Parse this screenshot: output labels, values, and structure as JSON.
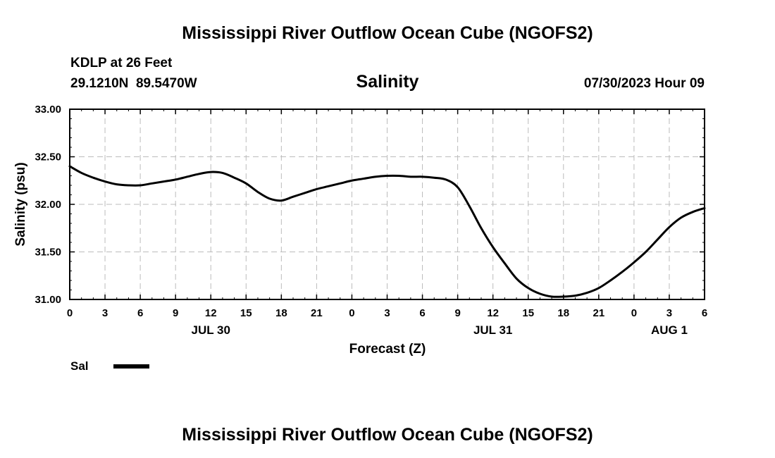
{
  "colors": {
    "background": "#ffffff",
    "line": "#000000",
    "grid": "#bbbbbb"
  },
  "chart_data": {
    "type": "line",
    "title": "Mississippi River Outflow Ocean Cube (NGOFS2)",
    "subtitle": "Salinity",
    "station": "KDLP at 26 Feet",
    "location": "29.1210N  89.5470W",
    "timestamp": "07/30/2023 Hour 09",
    "xlabel": "Forecast (Z)",
    "ylabel": "Salinity (psu)",
    "xlim": [
      0,
      54
    ],
    "ylim": [
      31.0,
      33.0
    ],
    "grid": true,
    "x_ticks": [
      {
        "value": 0,
        "label": "0"
      },
      {
        "value": 3,
        "label": "3"
      },
      {
        "value": 6,
        "label": "6"
      },
      {
        "value": 9,
        "label": "9"
      },
      {
        "value": 12,
        "label": "12"
      },
      {
        "value": 15,
        "label": "15"
      },
      {
        "value": 18,
        "label": "18"
      },
      {
        "value": 21,
        "label": "21"
      },
      {
        "value": 24,
        "label": "0"
      },
      {
        "value": 27,
        "label": "3"
      },
      {
        "value": 30,
        "label": "6"
      },
      {
        "value": 33,
        "label": "9"
      },
      {
        "value": 36,
        "label": "12"
      },
      {
        "value": 39,
        "label": "15"
      },
      {
        "value": 42,
        "label": "18"
      },
      {
        "value": 45,
        "label": "21"
      },
      {
        "value": 48,
        "label": "0"
      },
      {
        "value": 51,
        "label": "3"
      },
      {
        "value": 54,
        "label": "6"
      }
    ],
    "y_ticks": [
      {
        "value": 31.0,
        "label": "31.00"
      },
      {
        "value": 31.5,
        "label": "31.50"
      },
      {
        "value": 32.0,
        "label": "32.00"
      },
      {
        "value": 32.5,
        "label": "32.50"
      },
      {
        "value": 33.0,
        "label": "33.00"
      }
    ],
    "date_labels": [
      {
        "value": 12,
        "label": "JUL 30"
      },
      {
        "value": 36,
        "label": "JUL 31"
      },
      {
        "value": 51,
        "label": "AUG 1"
      }
    ],
    "legend": {
      "label": "Sal",
      "placement": "bottom-left"
    },
    "series": [
      {
        "name": "Sal",
        "x": [
          0,
          1,
          2,
          3,
          4,
          5,
          6,
          7,
          8,
          9,
          10,
          11,
          12,
          13,
          14,
          15,
          16,
          17,
          18,
          19,
          20,
          21,
          22,
          23,
          24,
          25,
          26,
          27,
          28,
          29,
          30,
          31,
          32,
          33,
          34,
          35,
          36,
          37,
          38,
          39,
          40,
          41,
          42,
          43,
          44,
          45,
          46,
          47,
          48,
          49,
          50,
          51,
          52,
          53,
          54
        ],
        "values": [
          32.4,
          32.33,
          32.28,
          32.24,
          32.21,
          32.2,
          32.2,
          32.22,
          32.24,
          32.26,
          32.29,
          32.32,
          32.34,
          32.33,
          32.28,
          32.22,
          32.13,
          32.06,
          32.04,
          32.08,
          32.12,
          32.16,
          32.19,
          32.22,
          32.25,
          32.27,
          32.29,
          32.3,
          32.3,
          32.29,
          32.29,
          32.28,
          32.26,
          32.18,
          31.98,
          31.75,
          31.55,
          31.38,
          31.22,
          31.12,
          31.06,
          31.03,
          31.03,
          31.04,
          31.07,
          31.12,
          31.2,
          31.29,
          31.39,
          31.5,
          31.63,
          31.76,
          31.86,
          31.92,
          31.96
        ]
      }
    ]
  },
  "footer_title": "Mississippi River Outflow Ocean Cube (NGOFS2)"
}
